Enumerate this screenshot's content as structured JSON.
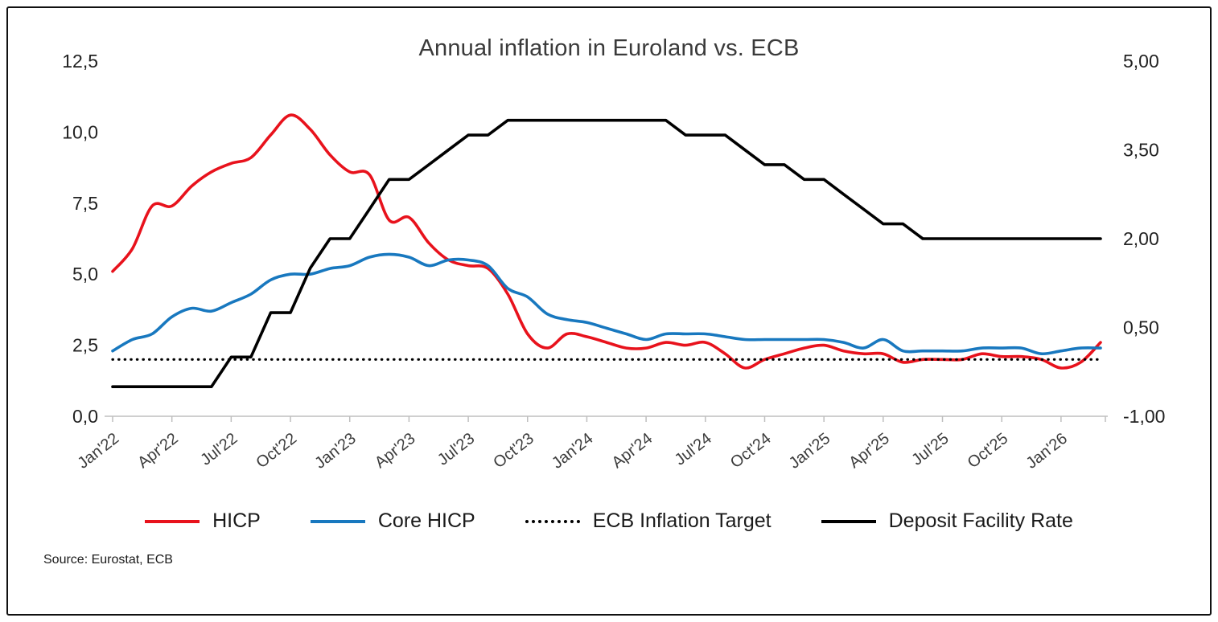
{
  "source": "Source: Eurostat, ECB",
  "chart_data": {
    "type": "line",
    "title": "Annual inflation in Euroland vs. ECB",
    "legend_position": "bottom",
    "grid": false,
    "x_tick_labels": [
      "Jan'22",
      "Apr'22",
      "Jul'22",
      "Oct'22",
      "Jan'23",
      "Apr'23",
      "Jul'23",
      "Oct'23",
      "Jan'24",
      "Apr'24",
      "Jul'24",
      "Oct'24",
      "Jan'25",
      "Apr'25",
      "Jul'25",
      "Oct'25",
      "Jan'26"
    ],
    "x_tick_positions": [
      0,
      3,
      6,
      9,
      12,
      15,
      18,
      21,
      24,
      27,
      30,
      33,
      36,
      39,
      42,
      45,
      48
    ],
    "left_axis": {
      "min": 0,
      "max": 12.5,
      "tick_values": [
        12.5,
        10.0,
        7.5,
        5.0,
        2.5,
        0.0
      ],
      "tick_labels": [
        "12,5",
        "10,0",
        "7,5",
        "5,0",
        "2,5",
        "0,0"
      ]
    },
    "right_axis": {
      "min": -1.0,
      "max": 5.0,
      "tick_values": [
        5.0,
        3.5,
        2.0,
        0.5,
        -1.0
      ],
      "tick_labels": [
        "5,00",
        "3,50",
        "2,00",
        "0,50",
        "-1,00"
      ]
    },
    "series": [
      {
        "name": "HICP",
        "axis": "left",
        "color": "#e8121c",
        "style": "solid",
        "smooth": true,
        "width": 3.6,
        "values": [
          5.1,
          5.9,
          7.4,
          7.4,
          8.1,
          8.6,
          8.9,
          9.1,
          9.9,
          10.6,
          10.1,
          9.2,
          8.6,
          8.5,
          6.9,
          7.0,
          6.1,
          5.5,
          5.3,
          5.2,
          4.3,
          2.9,
          2.4,
          2.9,
          2.8,
          2.6,
          2.4,
          2.4,
          2.6,
          2.5,
          2.6,
          2.2,
          1.7,
          2.0,
          2.2,
          2.4,
          2.5,
          2.3,
          2.2,
          2.2,
          1.9,
          2.0,
          2.0,
          2.0,
          2.2,
          2.1,
          2.1,
          2.0,
          1.7,
          1.9,
          2.6
        ]
      },
      {
        "name": "Core HICP",
        "axis": "left",
        "color": "#1878bf",
        "style": "solid",
        "smooth": true,
        "width": 3.6,
        "values": [
          2.3,
          2.7,
          2.9,
          3.5,
          3.8,
          3.7,
          4.0,
          4.3,
          4.8,
          5.0,
          5.0,
          5.2,
          5.3,
          5.6,
          5.7,
          5.6,
          5.3,
          5.5,
          5.5,
          5.3,
          4.5,
          4.2,
          3.6,
          3.4,
          3.3,
          3.1,
          2.9,
          2.7,
          2.9,
          2.9,
          2.9,
          2.8,
          2.7,
          2.7,
          2.7,
          2.7,
          2.7,
          2.6,
          2.4,
          2.7,
          2.3,
          2.3,
          2.3,
          2.3,
          2.4,
          2.4,
          2.4,
          2.2,
          2.3,
          2.4,
          2.4
        ]
      },
      {
        "name": "ECB Inflation Target",
        "axis": "left",
        "color": "#000000",
        "style": "dotted",
        "smooth": false,
        "width": 3.2,
        "constant": 2.0
      },
      {
        "name": "Deposit Facility Rate",
        "axis": "right",
        "color": "#000000",
        "style": "solid",
        "smooth": false,
        "width": 3.6,
        "values": [
          -0.5,
          -0.5,
          -0.5,
          -0.5,
          -0.5,
          -0.5,
          0.0,
          0.0,
          0.75,
          0.75,
          1.5,
          2.0,
          2.0,
          2.5,
          3.0,
          3.0,
          3.25,
          3.5,
          3.75,
          3.75,
          4.0,
          4.0,
          4.0,
          4.0,
          4.0,
          4.0,
          4.0,
          4.0,
          4.0,
          3.75,
          3.75,
          3.75,
          3.5,
          3.25,
          3.25,
          3.0,
          3.0,
          2.75,
          2.5,
          2.25,
          2.25,
          2.0,
          2.0,
          2.0,
          2.0,
          2.0,
          2.0,
          2.0,
          2.0,
          2.0,
          2.0
        ]
      }
    ]
  }
}
